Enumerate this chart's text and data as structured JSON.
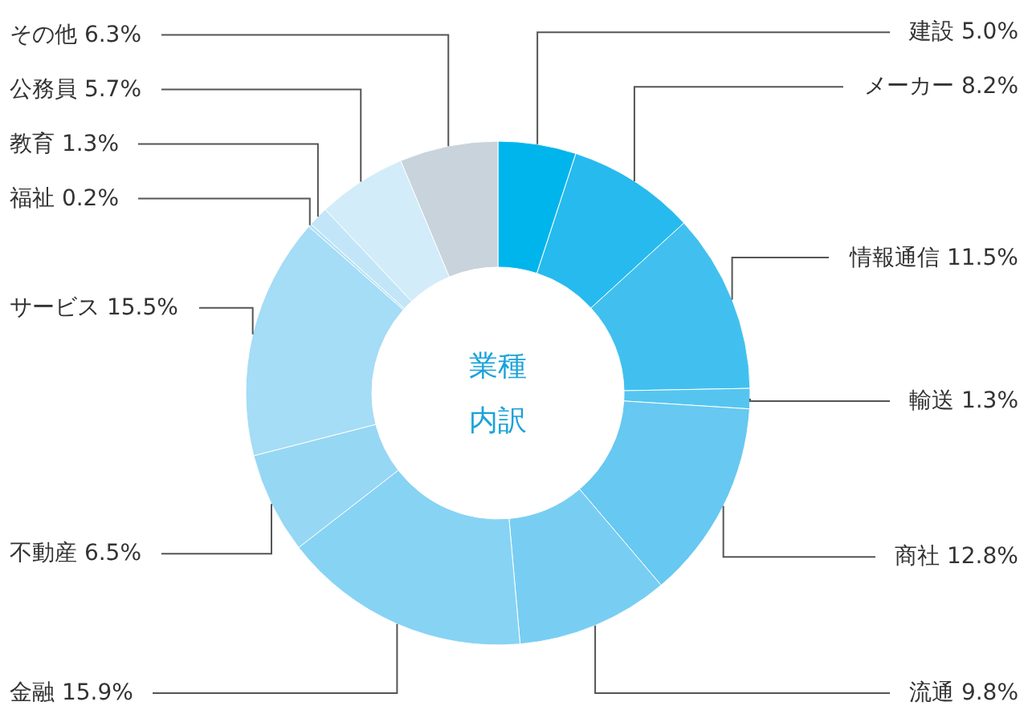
{
  "chart_data": {
    "type": "donut",
    "categories": [
      "建設",
      "メーカー",
      "情報通信",
      "輸送",
      "商社",
      "流通",
      "金融",
      "不動産",
      "サービス",
      "福祉",
      "教育",
      "公務員",
      "その他"
    ],
    "values": [
      5.0,
      8.2,
      11.5,
      1.3,
      12.8,
      9.8,
      15.9,
      6.5,
      15.5,
      0.2,
      1.3,
      5.7,
      6.3
    ],
    "value_labels": [
      "5.0%",
      "8.2%",
      "11.5%",
      "1.3%",
      "12.8%",
      "9.8%",
      "15.9%",
      "6.5%",
      "15.5%",
      "0.2%",
      "1.3%",
      "5.7%",
      "6.3%"
    ],
    "colors": [
      "#00b5ec",
      "#27baee",
      "#41c0ef",
      "#55c5f0",
      "#67c8f1",
      "#78cef2",
      "#87d3f4",
      "#96d7f4",
      "#a5dcf6",
      "#b3e1f7",
      "#c2e6f8",
      "#d2ecf9",
      "#c8d3dc"
    ],
    "annotations": [
      "業種",
      "内訳"
    ],
    "legend": false
  }
}
